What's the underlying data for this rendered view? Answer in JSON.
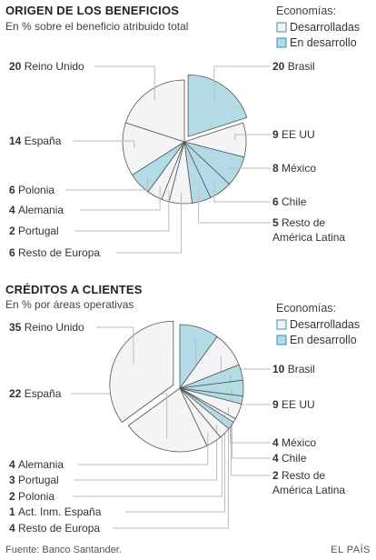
{
  "colors": {
    "developed": "#f3f4f6",
    "developing": "#b3dbe6",
    "stroke": "#555555",
    "leader": "#bbbbbb",
    "text": "#333333"
  },
  "chart_data": [
    {
      "type": "pie",
      "title": "ORIGEN DE LOS BENEFICIOS",
      "subtitle": "En % sobre el beneficio atribuido total",
      "legend": {
        "title": "Economías:",
        "placement": "top-right",
        "items": [
          {
            "label": "Desarrolladas",
            "group": "developed"
          },
          {
            "label": "En desarrollo",
            "group": "developing"
          }
        ]
      },
      "slices": [
        {
          "label": "Brasil",
          "value": 20,
          "group": "developing",
          "exploded": true
        },
        {
          "label": "EE UU",
          "value": 9,
          "group": "developed"
        },
        {
          "label": "México",
          "value": 8,
          "group": "developing"
        },
        {
          "label": "Chile",
          "value": 6,
          "group": "developing"
        },
        {
          "label": [
            "Resto de",
            "América Latina"
          ],
          "value": 5,
          "group": "developing"
        },
        {
          "label": "Resto de Europa",
          "value": 6,
          "group": "developed"
        },
        {
          "label": "Portugal",
          "value": 2,
          "group": "developed"
        },
        {
          "label": "Alemania",
          "value": 4,
          "group": "developed"
        },
        {
          "label": "Polonia",
          "value": 6,
          "group": "developing"
        },
        {
          "label": "España",
          "value": 14,
          "group": "developed"
        },
        {
          "label": "Reino Unido",
          "value": 20,
          "group": "developed"
        }
      ]
    },
    {
      "type": "pie",
      "title": "CRÉDITOS A CLIENTES",
      "subtitle": "En % por áreas operativas",
      "legend": {
        "title": "Economías:",
        "placement": "top-right",
        "items": [
          {
            "label": "Desarrolladas",
            "group": "developed"
          },
          {
            "label": "En desarrollo",
            "group": "developing"
          }
        ]
      },
      "slices": [
        {
          "label": "Brasil",
          "value": 10,
          "group": "developing"
        },
        {
          "label": "EE UU",
          "value": 9,
          "group": "developed"
        },
        {
          "label": "México",
          "value": 4,
          "group": "developing"
        },
        {
          "label": "Chile",
          "value": 4,
          "group": "developing"
        },
        {
          "label": [
            "Resto de",
            "América Latina"
          ],
          "value": 2,
          "group": "developing"
        },
        {
          "label": "Resto de Europa",
          "value": 4,
          "group": "developed"
        },
        {
          "label": "Act. Inm. España",
          "value": 1,
          "group": "developed"
        },
        {
          "label": "Polonia",
          "value": 2,
          "group": "developing"
        },
        {
          "label": "Portugal",
          "value": 3,
          "group": "developed"
        },
        {
          "label": "Alemania",
          "value": 4,
          "group": "developed"
        },
        {
          "label": "España",
          "value": 22,
          "group": "developed"
        },
        {
          "label": "Reino Unido",
          "value": 35,
          "group": "developed",
          "exploded": true
        }
      ]
    }
  ],
  "footer": {
    "source": "Fuente: Banco Santander.",
    "brand": "EL PAÍS"
  }
}
